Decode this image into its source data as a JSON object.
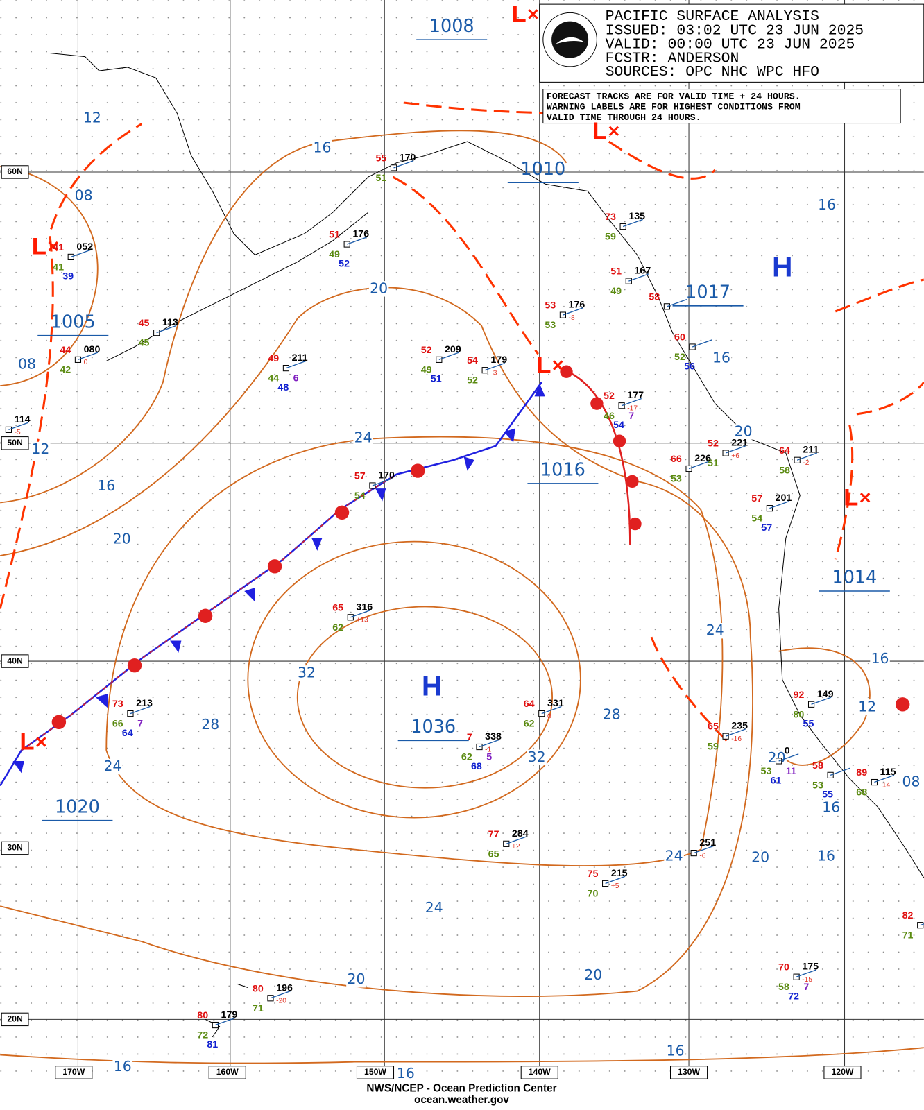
{
  "header": {
    "title": "PACIFIC SURFACE ANALYSIS",
    "lines": [
      "ISSUED: 03:02 UTC 23 JUN 2025",
      "VALID:  00:00 UTC 23 JUN 2025",
      "FCSTR:  ANDERSON",
      "SOURCES: OPC NHC WPC HFO"
    ]
  },
  "notice": [
    "FORECAST TRACKS ARE FOR VALID TIME + 24 HOURS.",
    "WARNING LABELS ARE FOR HIGHEST CONDITIONS FROM",
    "VALID TIME THROUGH 24 HOURS."
  ],
  "lat_labels": [
    "60N",
    "50N",
    "40N",
    "30N",
    "20N"
  ],
  "lon_labels": [
    "170W",
    "160W",
    "150W",
    "140W",
    "130W",
    "120W"
  ],
  "centers": [
    "L",
    "L",
    "L",
    "L",
    "L",
    "L",
    "H",
    "H"
  ],
  "pressure_labels": [
    "1008",
    "1010",
    "1005",
    "1016",
    "1014",
    "1017",
    "1020",
    "1036"
  ],
  "isobar_labels": [
    "12",
    "08",
    "08",
    "12",
    "16",
    "20",
    "16",
    "20",
    "24",
    "32",
    "28",
    "24",
    "28",
    "32",
    "24",
    "16",
    "16",
    "20",
    "16",
    "12",
    "20",
    "08",
    "16",
    "24",
    "20",
    "16",
    "24",
    "20",
    "20",
    "16",
    "16",
    "16"
  ],
  "stations": [
    {
      "t": "41",
      "p": "052",
      "d": "41",
      "w": "39"
    },
    {
      "t": "45",
      "p": "113",
      "d": "45"
    },
    {
      "t": "44",
      "p": "080",
      "d": "42",
      "tend": "0"
    },
    {
      "p": "114",
      "tend": "-5"
    },
    {
      "t": "51",
      "p": "176",
      "d": "49",
      "w": "52"
    },
    {
      "t": "55",
      "p": "170",
      "d": "51"
    },
    {
      "t": "49",
      "p": "211",
      "d": "44",
      "w": "48",
      "x": "6"
    },
    {
      "t": "52",
      "p": "209",
      "d": "49",
      "w": "51"
    },
    {
      "t": "54",
      "p": "179",
      "d": "52",
      "tend": "-3"
    },
    {
      "t": "53",
      "p": "176",
      "d": "53",
      "tend": "-8"
    },
    {
      "t": "73",
      "p": "135",
      "d": "59"
    },
    {
      "t": "51",
      "p": "167",
      "d": "49"
    },
    {
      "t": "58"
    },
    {
      "t": "60",
      "d": "52",
      "w": "56"
    },
    {
      "t": "52",
      "p": "177",
      "d": "46",
      "w": "54",
      "x": "7",
      "tend": "-17"
    },
    {
      "t": "52",
      "p": "221",
      "d": "51",
      "tend": "+6"
    },
    {
      "t": "66",
      "p": "226",
      "d": "53"
    },
    {
      "t": "64",
      "p": "211",
      "d": "58",
      "tend": "-2"
    },
    {
      "t": "57",
      "p": "201",
      "d": "54",
      "w": "57"
    },
    {
      "t": "57",
      "p": "170",
      "d": "54"
    },
    {
      "t": "65",
      "p": "316",
      "d": "62",
      "tend": "+13"
    },
    {
      "t": "73",
      "p": "213",
      "d": "66",
      "w": "64",
      "x": "7"
    },
    {
      "t": "64",
      "p": "331",
      "d": "62",
      "tend": "0"
    },
    {
      "t": "7",
      "p": "338",
      "d": "62",
      "w": "68",
      "x": "5",
      "tend": "-1"
    },
    {
      "t": "92",
      "p": "149",
      "d": "80",
      "w": "55"
    },
    {
      "t": "65",
      "p": "235",
      "d": "59",
      "tend": "-16"
    },
    {
      "p": "0",
      "d": "53",
      "w": "61",
      "x": "11"
    },
    {
      "t": "58",
      "d": "53",
      "w": "55"
    },
    {
      "t": "89",
      "p": "115",
      "d": "68",
      "tend": "-14"
    },
    {
      "t": "77",
      "p": "284",
      "d": "65",
      "tend": "+2"
    },
    {
      "p": "251",
      "tend": "-6"
    },
    {
      "t": "75",
      "p": "215",
      "d": "70",
      "tend": "+5"
    },
    {
      "t": "82",
      "d": "71"
    },
    {
      "t": "70",
      "p": "175",
      "d": "58",
      "w": "72",
      "x": "7",
      "tend": "-15"
    },
    {
      "t": "80",
      "p": "196",
      "d": "71",
      "tend": "-20"
    },
    {
      "t": "80",
      "p": "179",
      "d": "72",
      "w": "81"
    }
  ],
  "footer": [
    "NWS/NCEP - Ocean Prediction Center",
    "ocean.weather.gov"
  ]
}
